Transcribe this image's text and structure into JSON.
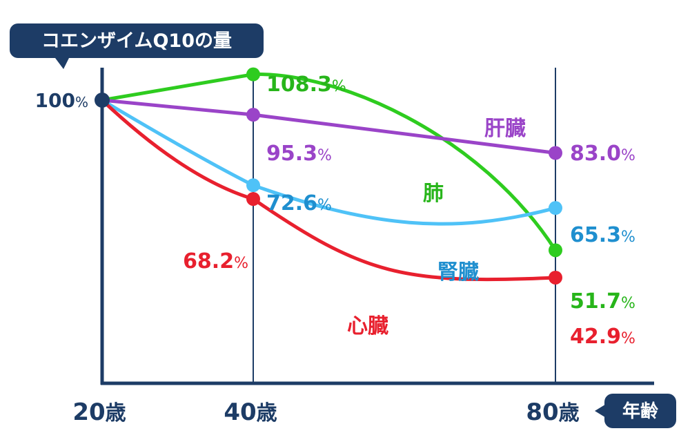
{
  "chart_data": {
    "type": "line",
    "ylabel": "コエンザイムQ10の量",
    "xlabel": "年齢",
    "x": [
      20,
      40,
      80
    ],
    "x_tick_labels": [
      "20歳",
      "40歳",
      "80歳"
    ],
    "x_tick_number": [
      "20",
      "40",
      "80"
    ],
    "x_tick_unit": "歳",
    "y_tick_label": "100",
    "y_tick_unit": "%",
    "ylim": [
      35,
      112
    ],
    "xlim": [
      20,
      80
    ],
    "grid": "vertical lines at 40 and 80",
    "series": [
      {
        "name": "肺",
        "values": [
          100,
          108.3,
          51.7
        ],
        "value_labels": [
          "",
          "108.3",
          "51.7"
        ],
        "color": "#2ecc1f"
      },
      {
        "name": "肝臓",
        "values": [
          100,
          95.3,
          83.0
        ],
        "value_labels": [
          "",
          "95.3",
          "83.0"
        ],
        "color": "#9a44c8"
      },
      {
        "name": "腎臓",
        "values": [
          100,
          72.6,
          65.3
        ],
        "value_labels": [
          "",
          "72.6",
          "65.3"
        ],
        "color": "#4fc2f7"
      },
      {
        "name": "心臓",
        "values": [
          100,
          68.2,
          42.9
        ],
        "value_labels": [
          "",
          "68.2",
          "42.9"
        ],
        "color": "#e8202e"
      }
    ],
    "label_colors": {
      "肺": "#27b51a",
      "肝臓": "#9a44c8",
      "腎臓": "#1f8fcf",
      "心臓": "#e8202e"
    },
    "axis_color": "#1d3c66"
  }
}
